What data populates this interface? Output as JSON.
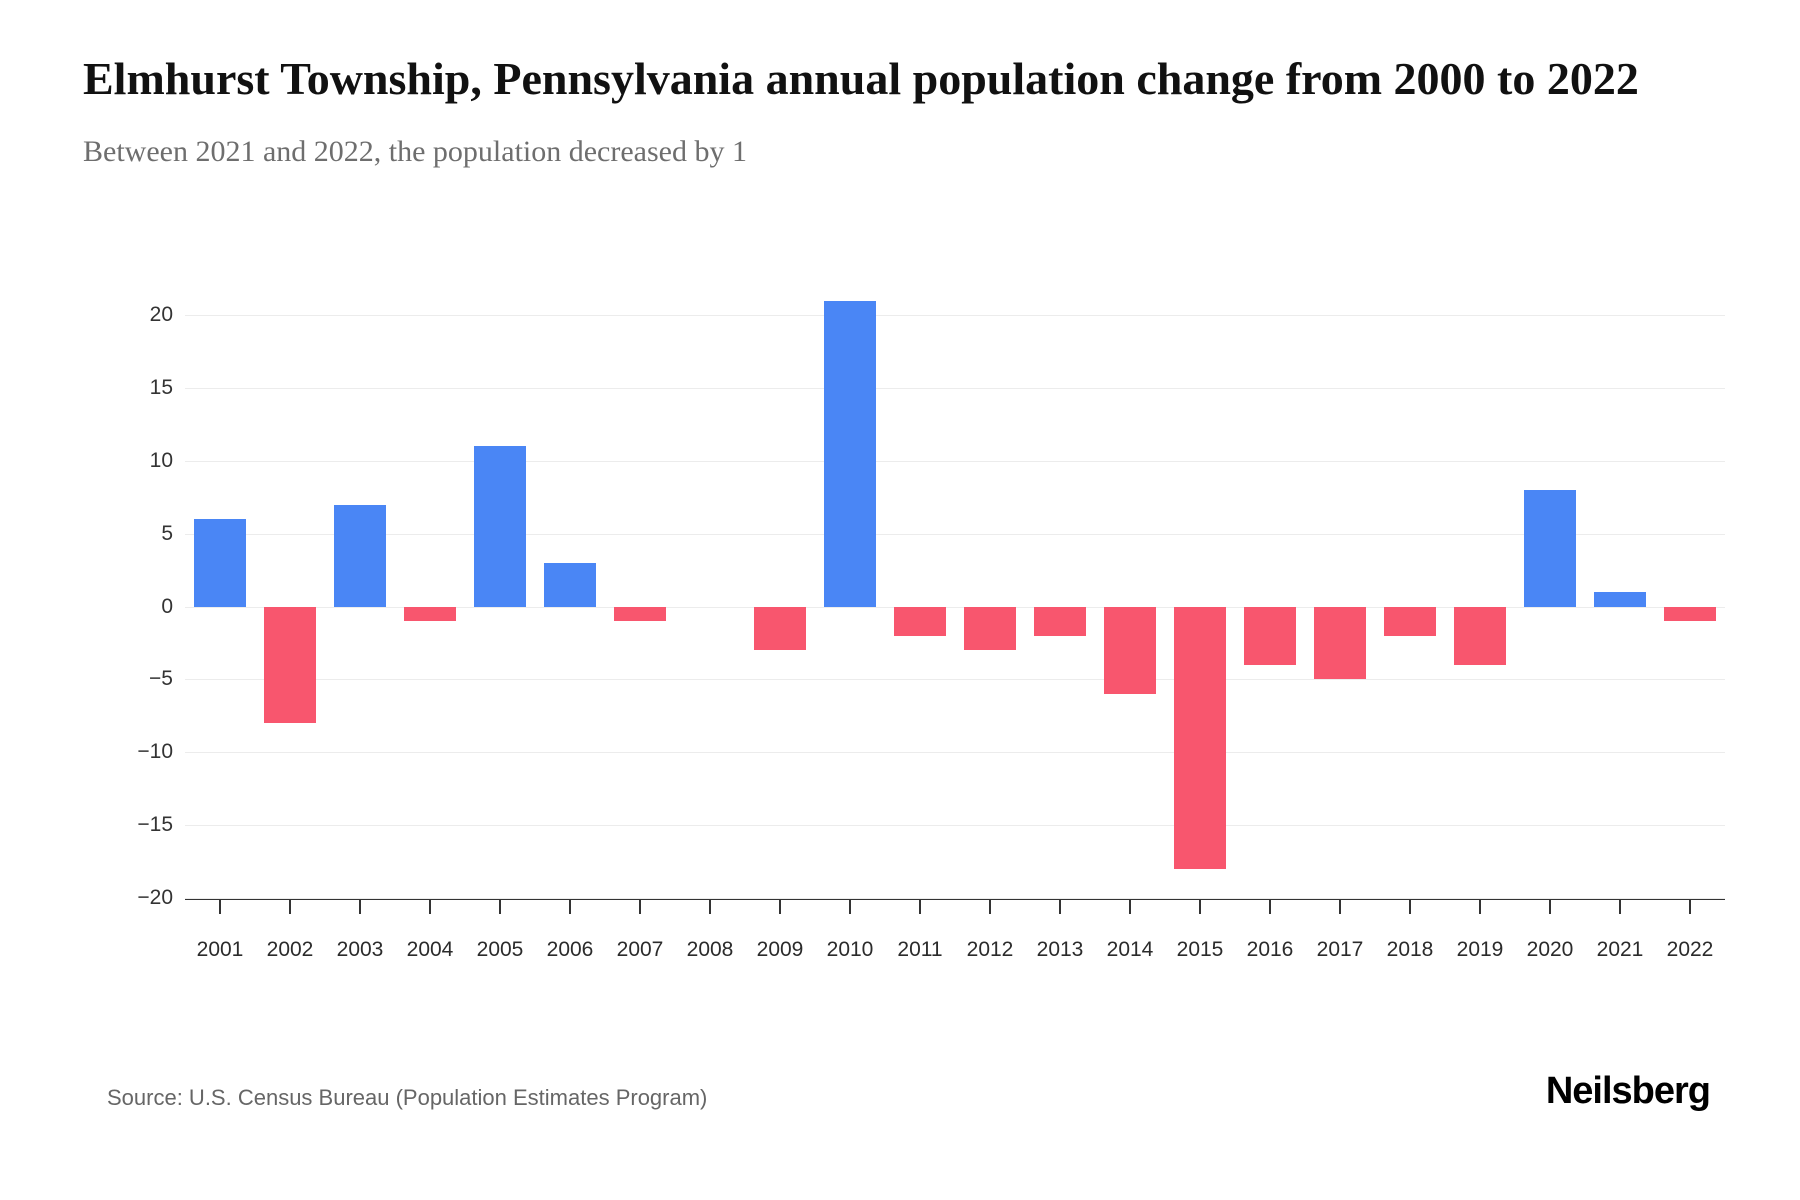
{
  "header": {
    "title": "Elmhurst Township, Pennsylvania annual population change from 2000 to 2022",
    "subtitle": "Between 2021 and 2022, the population decreased by 1"
  },
  "chart_data": {
    "type": "bar",
    "title": "Elmhurst Township, Pennsylvania annual population change from 2000 to 2022",
    "categories": [
      "2001",
      "2002",
      "2003",
      "2004",
      "2005",
      "2006",
      "2007",
      "2008",
      "2009",
      "2010",
      "2011",
      "2012",
      "2013",
      "2014",
      "2015",
      "2016",
      "2017",
      "2018",
      "2019",
      "2020",
      "2021",
      "2022"
    ],
    "values": [
      6,
      -8,
      7,
      -1,
      11,
      3,
      -1,
      0,
      -3,
      21,
      -2,
      -3,
      -2,
      -6,
      -18,
      -4,
      -5,
      -2,
      -4,
      8,
      1,
      -1
    ],
    "xlabel": "",
    "ylabel": "",
    "ylim": [
      -20,
      22
    ],
    "yticks": [
      20,
      15,
      10,
      5,
      0,
      -5,
      -10,
      -15,
      -20
    ],
    "grid": true,
    "legend": false,
    "colors": {
      "positive": "#4a86f5",
      "negative": "#f8566e"
    }
  },
  "footer": {
    "source": "Source: U.S. Census Bureau (Population Estimates Program)",
    "logo_text": "Neilsberg"
  }
}
